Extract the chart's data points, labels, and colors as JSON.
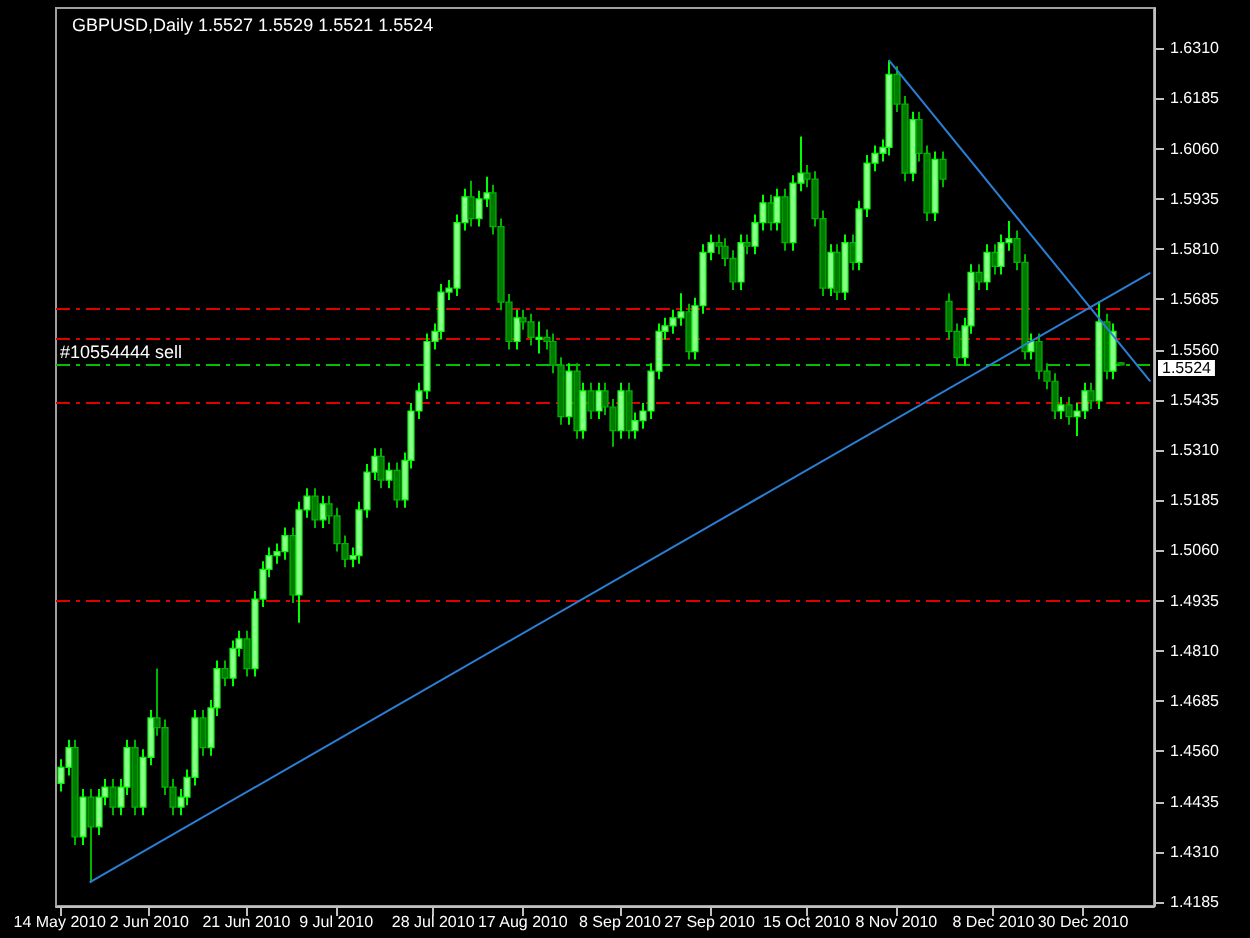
{
  "chart_data": {
    "type": "candlestick",
    "title": "GBPUSD,Daily 1.5527 1.5529 1.5521 1.5524",
    "categories": [
      "14 May 2010",
      null,
      null,
      null,
      null,
      null,
      null,
      null,
      null,
      null,
      null,
      null,
      "2 Jun 2010",
      null,
      null,
      null,
      null,
      null,
      null,
      null,
      null,
      null,
      null,
      null,
      null,
      "21 Jun 2010",
      null,
      null,
      null,
      null,
      null,
      null,
      null,
      null,
      null,
      null,
      null,
      "9 Jul 2010",
      null,
      null,
      null,
      null,
      null,
      null,
      null,
      null,
      null,
      null,
      null,
      null,
      "28 Jul 2010",
      null,
      null,
      null,
      null,
      null,
      null,
      null,
      null,
      null,
      null,
      null,
      "17 Aug 2010",
      null,
      null,
      null,
      null,
      null,
      null,
      null,
      null,
      null,
      null,
      null,
      null,
      "8 Sep 2010",
      null,
      null,
      null,
      null,
      null,
      null,
      null,
      null,
      null,
      null,
      null,
      "27 Sep 2010",
      null,
      null,
      null,
      null,
      null,
      null,
      null,
      null,
      null,
      null,
      null,
      null,
      "15 Oct 2010",
      null,
      null,
      null,
      null,
      null,
      null,
      null,
      null,
      null,
      null,
      null,
      "8 Nov 2010",
      null,
      null,
      null,
      null,
      null,
      null,
      null,
      null,
      null,
      null,
      null,
      null,
      "8 Dec 2010",
      null,
      null,
      null,
      null,
      null,
      null,
      null,
      null,
      null,
      null,
      null,
      "30 Dec 2010",
      null,
      null,
      null,
      null,
      null,
      null,
      null,
      null,
      null
    ],
    "ohlc": [
      [
        1.448,
        1.454,
        1.446,
        1.452
      ],
      [
        1.452,
        1.4589,
        1.45,
        1.4569
      ],
      [
        1.4569,
        1.4589,
        1.4327,
        1.4347
      ],
      [
        1.4347,
        1.4466,
        1.4327,
        1.4446
      ],
      [
        1.4446,
        1.4466,
        1.4234,
        1.4372
      ],
      [
        1.4372,
        1.4466,
        1.4352,
        1.4446
      ],
      [
        1.4446,
        1.4491,
        1.4426,
        1.4471
      ],
      [
        1.4471,
        1.4491,
        1.4401,
        1.4421
      ],
      [
        1.4421,
        1.4491,
        1.4401,
        1.4471
      ],
      [
        1.4471,
        1.4589,
        1.4451,
        1.4569
      ],
      [
        1.4569,
        1.4589,
        1.4401,
        1.4421
      ],
      [
        1.4421,
        1.4565,
        1.4401,
        1.4545
      ],
      [
        1.4545,
        1.4663,
        1.4525,
        1.4643
      ],
      [
        1.4643,
        1.4766,
        1.4599,
        1.4619
      ],
      [
        1.4619,
        1.4639,
        1.4451,
        1.4471
      ],
      [
        1.4471,
        1.4491,
        1.4401,
        1.4421
      ],
      [
        1.4421,
        1.4466,
        1.4401,
        1.4446
      ],
      [
        1.4446,
        1.4515,
        1.4426,
        1.4495
      ],
      [
        1.4495,
        1.4663,
        1.4475,
        1.4643
      ],
      [
        1.4643,
        1.4663,
        1.4549,
        1.4569
      ],
      [
        1.4569,
        1.4688,
        1.4549,
        1.4668
      ],
      [
        1.4668,
        1.4786,
        1.4648,
        1.4766
      ],
      [
        1.4766,
        1.4786,
        1.4722,
        1.4742
      ],
      [
        1.4742,
        1.4836,
        1.4722,
        1.4816
      ],
      [
        1.4816,
        1.486,
        1.4796,
        1.484
      ],
      [
        1.484,
        1.486,
        1.4746,
        1.4766
      ],
      [
        1.4766,
        1.4959,
        1.4746,
        1.4939
      ],
      [
        1.4939,
        1.5033,
        1.4919,
        1.5013
      ],
      [
        1.5013,
        1.5067,
        1.4993,
        1.5047
      ],
      [
        1.5047,
        1.5077,
        1.5027,
        1.5057
      ],
      [
        1.5057,
        1.5117,
        1.5037,
        1.5097
      ],
      [
        1.5097,
        1.5117,
        1.4929,
        1.4949
      ],
      [
        1.4949,
        1.5181,
        1.488,
        1.5161
      ],
      [
        1.5161,
        1.5215,
        1.5141,
        1.5195
      ],
      [
        1.5195,
        1.5215,
        1.5116,
        1.5136
      ],
      [
        1.5136,
        1.5196,
        1.5116,
        1.5176
      ],
      [
        1.5176,
        1.5196,
        1.5126,
        1.5146
      ],
      [
        1.5146,
        1.5166,
        1.5057,
        1.5077
      ],
      [
        1.5077,
        1.5097,
        1.5018,
        1.5038
      ],
      [
        1.5038,
        1.5067,
        1.5018,
        1.5047
      ],
      [
        1.5047,
        1.5181,
        1.5027,
        1.5161
      ],
      [
        1.5161,
        1.5275,
        1.5141,
        1.5255
      ],
      [
        1.5255,
        1.5314,
        1.5235,
        1.5294
      ],
      [
        1.5294,
        1.5314,
        1.5215,
        1.5235
      ],
      [
        1.5235,
        1.5279,
        1.5215,
        1.5259
      ],
      [
        1.5259,
        1.5279,
        1.5166,
        1.5186
      ],
      [
        1.5186,
        1.5304,
        1.5166,
        1.5284
      ],
      [
        1.5284,
        1.5427,
        1.5264,
        1.5407
      ],
      [
        1.5407,
        1.5477,
        1.5387,
        1.5457
      ],
      [
        1.5457,
        1.56,
        1.5437,
        1.558
      ],
      [
        1.558,
        1.5625,
        1.556,
        1.5605
      ],
      [
        1.5605,
        1.5723,
        1.5585,
        1.5703
      ],
      [
        1.5703,
        1.5733,
        1.5683,
        1.5713
      ],
      [
        1.5713,
        1.5896,
        1.5693,
        1.5876
      ],
      [
        1.5876,
        1.596,
        1.5856,
        1.594
      ],
      [
        1.594,
        1.598,
        1.5866,
        1.5886
      ],
      [
        1.5886,
        1.5955,
        1.5866,
        1.5935
      ],
      [
        1.5935,
        1.599,
        1.5915,
        1.595
      ],
      [
        1.595,
        1.597,
        1.5846,
        1.5866
      ],
      [
        1.5866,
        1.5886,
        1.5658,
        1.5678
      ],
      [
        1.5678,
        1.5698,
        1.556,
        1.558
      ],
      [
        1.558,
        1.5659,
        1.556,
        1.5639
      ],
      [
        1.5639,
        1.5659,
        1.5609,
        1.5629
      ],
      [
        1.5629,
        1.5649,
        1.557,
        1.559
      ],
      [
        1.559,
        1.563,
        1.555,
        1.559
      ],
      [
        1.559,
        1.561,
        1.556,
        1.558
      ],
      [
        1.558,
        1.56,
        1.5501,
        1.5521
      ],
      [
        1.5521,
        1.5541,
        1.5373,
        1.5393
      ],
      [
        1.5393,
        1.5526,
        1.5373,
        1.5506
      ],
      [
        1.5506,
        1.5526,
        1.5338,
        1.5358
      ],
      [
        1.5358,
        1.5477,
        1.5338,
        1.5457
      ],
      [
        1.5457,
        1.5477,
        1.5387,
        1.5407
      ],
      [
        1.5407,
        1.5477,
        1.5387,
        1.5457
      ],
      [
        1.5457,
        1.5477,
        1.5397,
        1.5417
      ],
      [
        1.5417,
        1.5437,
        1.5318,
        1.5358
      ],
      [
        1.5358,
        1.5477,
        1.5338,
        1.5457
      ],
      [
        1.5457,
        1.5477,
        1.5338,
        1.5358
      ],
      [
        1.5358,
        1.5403,
        1.5338,
        1.5383
      ],
      [
        1.5383,
        1.5427,
        1.5363,
        1.5407
      ],
      [
        1.5407,
        1.5526,
        1.5387,
        1.5506
      ],
      [
        1.5506,
        1.5625,
        1.5486,
        1.5605
      ],
      [
        1.5605,
        1.5639,
        1.5585,
        1.5619
      ],
      [
        1.5619,
        1.5659,
        1.5599,
        1.5639
      ],
      [
        1.5639,
        1.57,
        1.5619,
        1.5654
      ],
      [
        1.5654,
        1.5674,
        1.5535,
        1.5555
      ],
      [
        1.5555,
        1.5689,
        1.5535,
        1.5669
      ],
      [
        1.5669,
        1.5822,
        1.5649,
        1.5802
      ],
      [
        1.5802,
        1.5846,
        1.5782,
        1.5826
      ],
      [
        1.5826,
        1.5846,
        1.5797,
        1.5817
      ],
      [
        1.5817,
        1.5837,
        1.5767,
        1.5787
      ],
      [
        1.5787,
        1.5807,
        1.5708,
        1.5728
      ],
      [
        1.5728,
        1.5846,
        1.5708,
        1.5826
      ],
      [
        1.5826,
        1.5846,
        1.5797,
        1.5817
      ],
      [
        1.5817,
        1.5896,
        1.5797,
        1.5876
      ],
      [
        1.5876,
        1.5945,
        1.5856,
        1.5925
      ],
      [
        1.5925,
        1.5945,
        1.5856,
        1.5876
      ],
      [
        1.5876,
        1.596,
        1.5856,
        1.594
      ],
      [
        1.594,
        1.596,
        1.5806,
        1.5826
      ],
      [
        1.5826,
        1.5994,
        1.5806,
        1.5974
      ],
      [
        1.5974,
        1.609,
        1.5954,
        1.5999
      ],
      [
        1.5999,
        1.6019,
        1.5964,
        1.5984
      ],
      [
        1.5984,
        1.6004,
        1.5866,
        1.5886
      ],
      [
        1.5886,
        1.5906,
        1.5693,
        1.5713
      ],
      [
        1.5713,
        1.5822,
        1.5693,
        1.5802
      ],
      [
        1.5802,
        1.5822,
        1.5683,
        1.5703
      ],
      [
        1.5703,
        1.5846,
        1.5683,
        1.5826
      ],
      [
        1.5826,
        1.5846,
        1.5757,
        1.5777
      ],
      [
        1.5777,
        1.593,
        1.5757,
        1.591
      ],
      [
        1.591,
        1.6044,
        1.589,
        1.6024
      ],
      [
        1.6024,
        1.6068,
        1.6004,
        1.6048
      ],
      [
        1.6048,
        1.6083,
        1.6028,
        1.6063
      ],
      [
        1.6063,
        1.628,
        1.6043,
        1.6245
      ],
      [
        1.6245,
        1.6265,
        1.6151,
        1.6171
      ],
      [
        1.6171,
        1.6191,
        1.5979,
        1.5999
      ],
      [
        1.5999,
        1.6152,
        1.5979,
        1.6132
      ],
      [
        1.6132,
        1.6152,
        1.6028,
        1.6048
      ],
      [
        1.6048,
        1.6068,
        1.588,
        1.59
      ],
      [
        1.59,
        1.6053,
        1.588,
        1.6033
      ],
      [
        1.6033,
        1.6053,
        1.5964,
        1.5984
      ],
      [
        1.568,
        1.57,
        1.5585,
        1.5605
      ],
      [
        1.5605,
        1.5625,
        1.552,
        1.554
      ],
      [
        1.554,
        1.5639,
        1.552,
        1.5619
      ],
      [
        1.5619,
        1.5772,
        1.5599,
        1.5752
      ],
      [
        1.5752,
        1.5772,
        1.5708,
        1.5728
      ],
      [
        1.5728,
        1.5822,
        1.5708,
        1.5802
      ],
      [
        1.5802,
        1.5822,
        1.5747,
        1.5767
      ],
      [
        1.5767,
        1.5846,
        1.5747,
        1.5826
      ],
      [
        1.5826,
        1.588,
        1.5806,
        1.5836
      ],
      [
        1.5836,
        1.5856,
        1.5757,
        1.5777
      ],
      [
        1.5777,
        1.5797,
        1.5535,
        1.5555
      ],
      [
        1.5555,
        1.56,
        1.5535,
        1.558
      ],
      [
        1.558,
        1.56,
        1.5486,
        1.5506
      ],
      [
        1.5506,
        1.5526,
        1.5461,
        1.5481
      ],
      [
        1.5481,
        1.5501,
        1.5387,
        1.5407
      ],
      [
        1.5407,
        1.5442,
        1.5387,
        1.5422
      ],
      [
        1.5422,
        1.5442,
        1.5373,
        1.5393
      ],
      [
        1.5393,
        1.5427,
        1.5345,
        1.5407
      ],
      [
        1.5407,
        1.5477,
        1.5387,
        1.5457
      ],
      [
        1.5457,
        1.5477,
        1.5412,
        1.5432
      ],
      [
        1.5432,
        1.568,
        1.5412,
        1.5629
      ],
      [
        1.5629,
        1.5649,
        1.5486,
        1.5506
      ],
      [
        1.5506,
        1.5625,
        1.5486,
        1.5605
      ],
      [
        1.5527,
        1.5529,
        1.5521,
        1.5524
      ],
      null,
      null,
      null,
      null
    ],
    "series": [
      {
        "type": "line",
        "color": "#2a7fd4",
        "values": [
          null,
          null,
          null,
          null,
          1.4234,
          null,
          null,
          null,
          null,
          null,
          null,
          null,
          null,
          null,
          null,
          null,
          null,
          null,
          null,
          null,
          null,
          null,
          null,
          null,
          null,
          null,
          null,
          null,
          null,
          null,
          null,
          null,
          null,
          null,
          null,
          null,
          null,
          null,
          null,
          null,
          null,
          null,
          null,
          null,
          null,
          null,
          null,
          null,
          null,
          null,
          null,
          null,
          null,
          null,
          null,
          null,
          null,
          null,
          null,
          null,
          null,
          null,
          null,
          null,
          null,
          null,
          null,
          null,
          null,
          null,
          null,
          null,
          null,
          null,
          null,
          null,
          null,
          null,
          null,
          null,
          null,
          null,
          null,
          null,
          null,
          null,
          null,
          null,
          null,
          null,
          null,
          null,
          null,
          null,
          null,
          null,
          null,
          null,
          null,
          null,
          null,
          null,
          null,
          null,
          null,
          null,
          null,
          null,
          null,
          null,
          null,
          null,
          null,
          null,
          null,
          null,
          null,
          null,
          null,
          null,
          null,
          null,
          null,
          null,
          null,
          null,
          null,
          null,
          null,
          null,
          null,
          null,
          null,
          null,
          null,
          null,
          null,
          null,
          null,
          null,
          null,
          null,
          null,
          null,
          null,
          null,
          1.5751
        ]
      },
      {
        "type": "line",
        "color": "#2a7fd4",
        "values": [
          null,
          null,
          null,
          null,
          null,
          null,
          null,
          null,
          null,
          null,
          null,
          null,
          null,
          null,
          null,
          null,
          null,
          null,
          null,
          null,
          null,
          null,
          null,
          null,
          null,
          null,
          null,
          null,
          null,
          null,
          null,
          null,
          null,
          null,
          null,
          null,
          null,
          null,
          null,
          null,
          null,
          null,
          null,
          null,
          null,
          null,
          null,
          null,
          null,
          null,
          null,
          null,
          null,
          null,
          null,
          null,
          null,
          null,
          null,
          null,
          null,
          null,
          null,
          null,
          null,
          null,
          null,
          null,
          null,
          null,
          null,
          null,
          null,
          null,
          null,
          null,
          null,
          null,
          null,
          null,
          null,
          null,
          null,
          null,
          null,
          null,
          null,
          null,
          null,
          null,
          null,
          null,
          null,
          null,
          null,
          null,
          null,
          null,
          null,
          null,
          null,
          null,
          null,
          null,
          null,
          null,
          null,
          null,
          null,
          null,
          null,
          1.628,
          null,
          null,
          null,
          null,
          null,
          null,
          null,
          null,
          null,
          null,
          null,
          null,
          null,
          null,
          null,
          null,
          null,
          null,
          null,
          null,
          null,
          null,
          null,
          null,
          null,
          null,
          null,
          null,
          null,
          null,
          null,
          null,
          null,
          null,
          1.5481
        ]
      }
    ],
    "ref_lines": [
      {
        "axis": "y",
        "value": 1.5661,
        "color": "#e00000",
        "line_style": "dashed"
      },
      {
        "axis": "y",
        "value": 1.559,
        "color": "#e00000",
        "line_style": "dashed"
      },
      {
        "axis": "y",
        "value": 1.5522,
        "color": "#00c000",
        "line_style": "dashed",
        "label": "#10554444 sell"
      },
      {
        "axis": "y",
        "value": 1.5431,
        "color": "#e00000",
        "line_style": "dashed"
      },
      {
        "axis": "y",
        "value": 1.4935,
        "color": "#e00000",
        "line_style": "dashed"
      }
    ],
    "annotations": [
      "1.5524"
    ],
    "ylim": [
      1.4175,
      1.641
    ],
    "yticks": [
      {
        "value": 1.631,
        "label": "1.6310"
      },
      {
        "value": 1.6185,
        "label": "1.6185"
      },
      {
        "value": 1.606,
        "label": "1.6060"
      },
      {
        "value": 1.5935,
        "label": "1.5935"
      },
      {
        "value": 1.581,
        "label": "1.5810"
      },
      {
        "value": 1.5685,
        "label": "1.5685"
      },
      {
        "value": 1.556,
        "label": "1.5560"
      },
      {
        "value": 1.5435,
        "label": "1.5435"
      },
      {
        "value": 1.531,
        "label": "1.5310"
      },
      {
        "value": 1.5185,
        "label": "1.5185"
      },
      {
        "value": 1.506,
        "label": "1.5060"
      },
      {
        "value": 1.4935,
        "label": "1.4935"
      },
      {
        "value": 1.481,
        "label": "1.4810"
      },
      {
        "value": 1.4685,
        "label": "1.4685"
      },
      {
        "value": 1.456,
        "label": "1.4560"
      },
      {
        "value": 1.4435,
        "label": "1.4435"
      },
      {
        "value": 1.431,
        "label": "1.4310"
      },
      {
        "value": 1.4185,
        "label": "1.4185"
      }
    ]
  }
}
